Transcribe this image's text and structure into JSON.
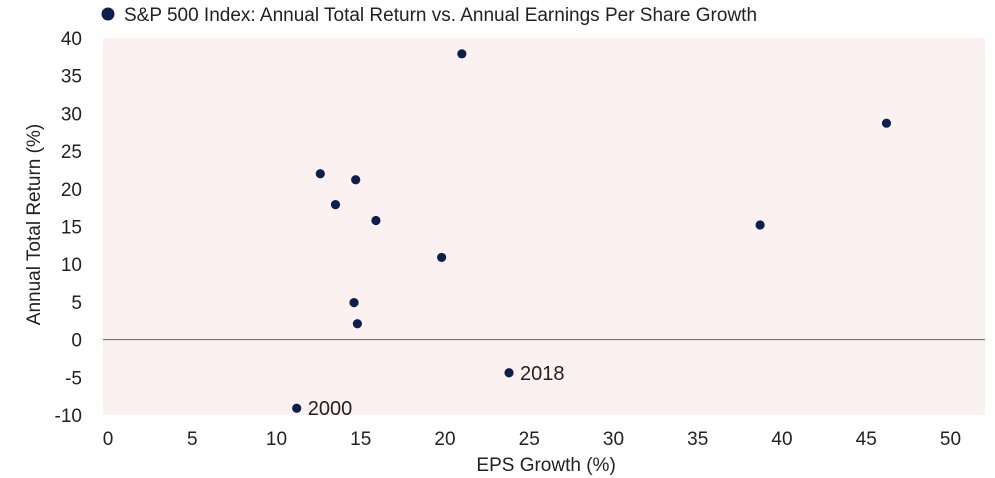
{
  "chart_data": {
    "type": "scatter",
    "title": "",
    "xlabel": "EPS Growth (%)",
    "ylabel": "Annual Total Return (%)",
    "xlim": [
      0,
      52
    ],
    "ylim": [
      -10,
      40
    ],
    "xticks": [
      0,
      5,
      10,
      15,
      20,
      25,
      30,
      35,
      40,
      45,
      50
    ],
    "yticks": [
      -10,
      -5,
      0,
      5,
      10,
      15,
      20,
      25,
      30,
      35,
      40
    ],
    "grid": false,
    "legend_position": "top-left",
    "colors": {
      "marker": "#0d1f4c",
      "plot_bg": "#fbf1f0",
      "zero_line": "#666666"
    },
    "series": [
      {
        "name": "S&P 500 Index: Annual Total Return vs. Annual Earnings Per Share Growth",
        "points": [
          {
            "x": 11.2,
            "y": -9.1,
            "label": "2000"
          },
          {
            "x": 23.8,
            "y": -4.4,
            "label": "2018"
          },
          {
            "x": 12.6,
            "y": 22.0,
            "label": ""
          },
          {
            "x": 14.7,
            "y": 21.2,
            "label": ""
          },
          {
            "x": 13.5,
            "y": 17.9,
            "label": ""
          },
          {
            "x": 15.9,
            "y": 15.8,
            "label": ""
          },
          {
            "x": 19.8,
            "y": 10.9,
            "label": ""
          },
          {
            "x": 14.6,
            "y": 4.9,
            "label": ""
          },
          {
            "x": 14.8,
            "y": 2.1,
            "label": ""
          },
          {
            "x": 21.0,
            "y": 37.9,
            "label": ""
          },
          {
            "x": 38.7,
            "y": 15.2,
            "label": ""
          },
          {
            "x": 46.2,
            "y": 28.7,
            "label": ""
          }
        ]
      }
    ]
  }
}
